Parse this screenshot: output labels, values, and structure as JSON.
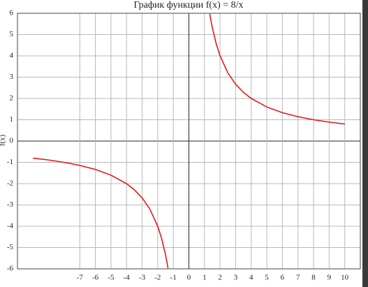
{
  "chart_data": {
    "type": "line",
    "title": "График функции f(x) = 8/x",
    "ylabel": "f(x)",
    "x": [
      -10,
      -9,
      -8,
      -7,
      -6,
      -5,
      -4,
      -3.5,
      -3,
      -2.5,
      -2,
      -1.75,
      -1.5,
      -1.4,
      -1.34,
      0,
      1.34,
      1.4,
      1.5,
      1.75,
      2,
      2.5,
      3,
      3.5,
      4,
      5,
      6,
      7,
      8,
      9,
      10
    ],
    "values": [
      -0.8,
      -0.889,
      -1,
      -1.143,
      -1.333,
      -1.6,
      -2,
      -2.286,
      -2.667,
      -3.2,
      -4,
      -4.571,
      -5.333,
      -5.714,
      -5.97,
      null,
      5.97,
      5.714,
      5.333,
      4.571,
      4,
      3.2,
      2.667,
      2.286,
      2,
      1.6,
      1.333,
      1.143,
      1,
      0.889,
      0.8
    ],
    "color": "#e8141c",
    "xlim": [
      -11,
      11
    ],
    "ylim": [
      -6,
      6
    ],
    "xticks": [
      -7,
      -6,
      -5,
      -4,
      -3,
      -2,
      -1,
      0,
      1,
      2,
      3,
      4,
      5,
      6,
      7,
      8,
      9,
      10
    ],
    "yticks": [
      -6,
      -5,
      -4,
      -3,
      -2,
      -1,
      0,
      1,
      2,
      3,
      4,
      5,
      6
    ],
    "grid": true
  }
}
